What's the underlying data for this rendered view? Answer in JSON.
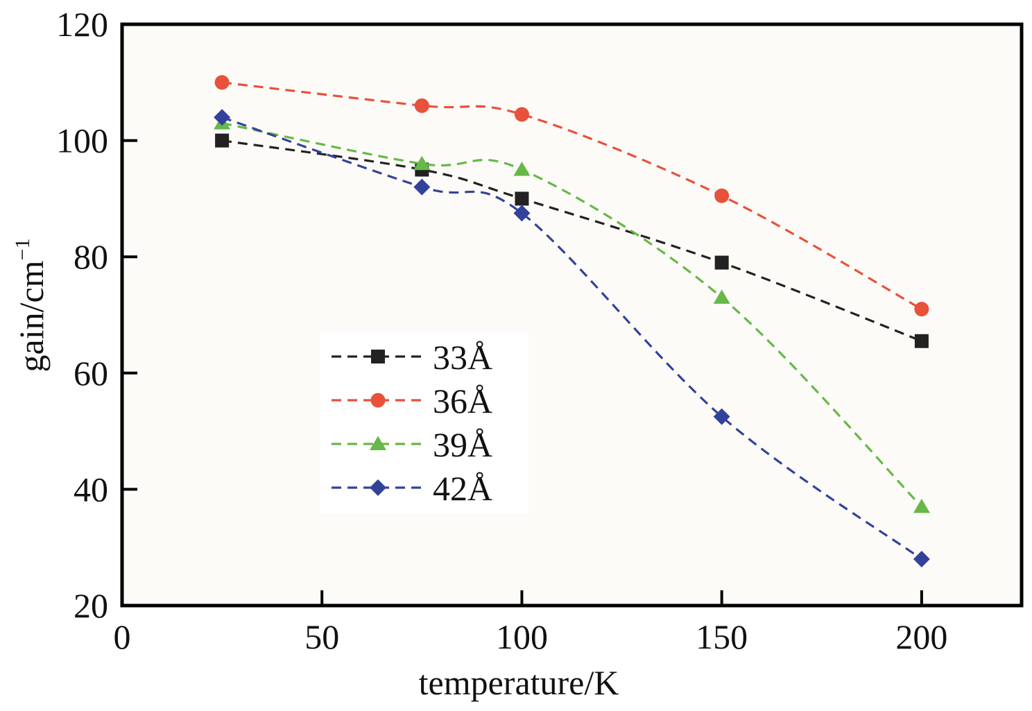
{
  "chart_data": {
    "type": "line",
    "title": "",
    "xlabel": "temperature/K",
    "ylabel": "gain/cm",
    "ylabel_superscript": "−1",
    "xlim": [
      0,
      225
    ],
    "ylim": [
      20,
      120
    ],
    "x_ticks": [
      0,
      50,
      100,
      150,
      200
    ],
    "y_ticks": [
      20,
      40,
      60,
      80,
      100,
      120
    ],
    "x_tick_labels": [
      "0",
      "50",
      "100",
      "150",
      "200"
    ],
    "y_tick_labels": [
      "20",
      "40",
      "60",
      "80",
      "100",
      "120"
    ],
    "grid": false,
    "legend_position": "center-left",
    "x": [
      25,
      75,
      100,
      150,
      200
    ],
    "series": [
      {
        "name": "33Å",
        "values": [
          100,
          95,
          90,
          79,
          65.5
        ],
        "color": "#222222",
        "marker": "square"
      },
      {
        "name": "36Å",
        "values": [
          110,
          106,
          104.5,
          90.5,
          71
        ],
        "color": "#e8513a",
        "marker": "circle"
      },
      {
        "name": "39Å",
        "values": [
          103,
          96,
          95,
          73,
          37
        ],
        "color": "#66b847",
        "marker": "triangle"
      },
      {
        "name": "42Å",
        "values": [
          104,
          92,
          87.5,
          52.5,
          28
        ],
        "color": "#32429a",
        "marker": "diamond"
      }
    ]
  }
}
